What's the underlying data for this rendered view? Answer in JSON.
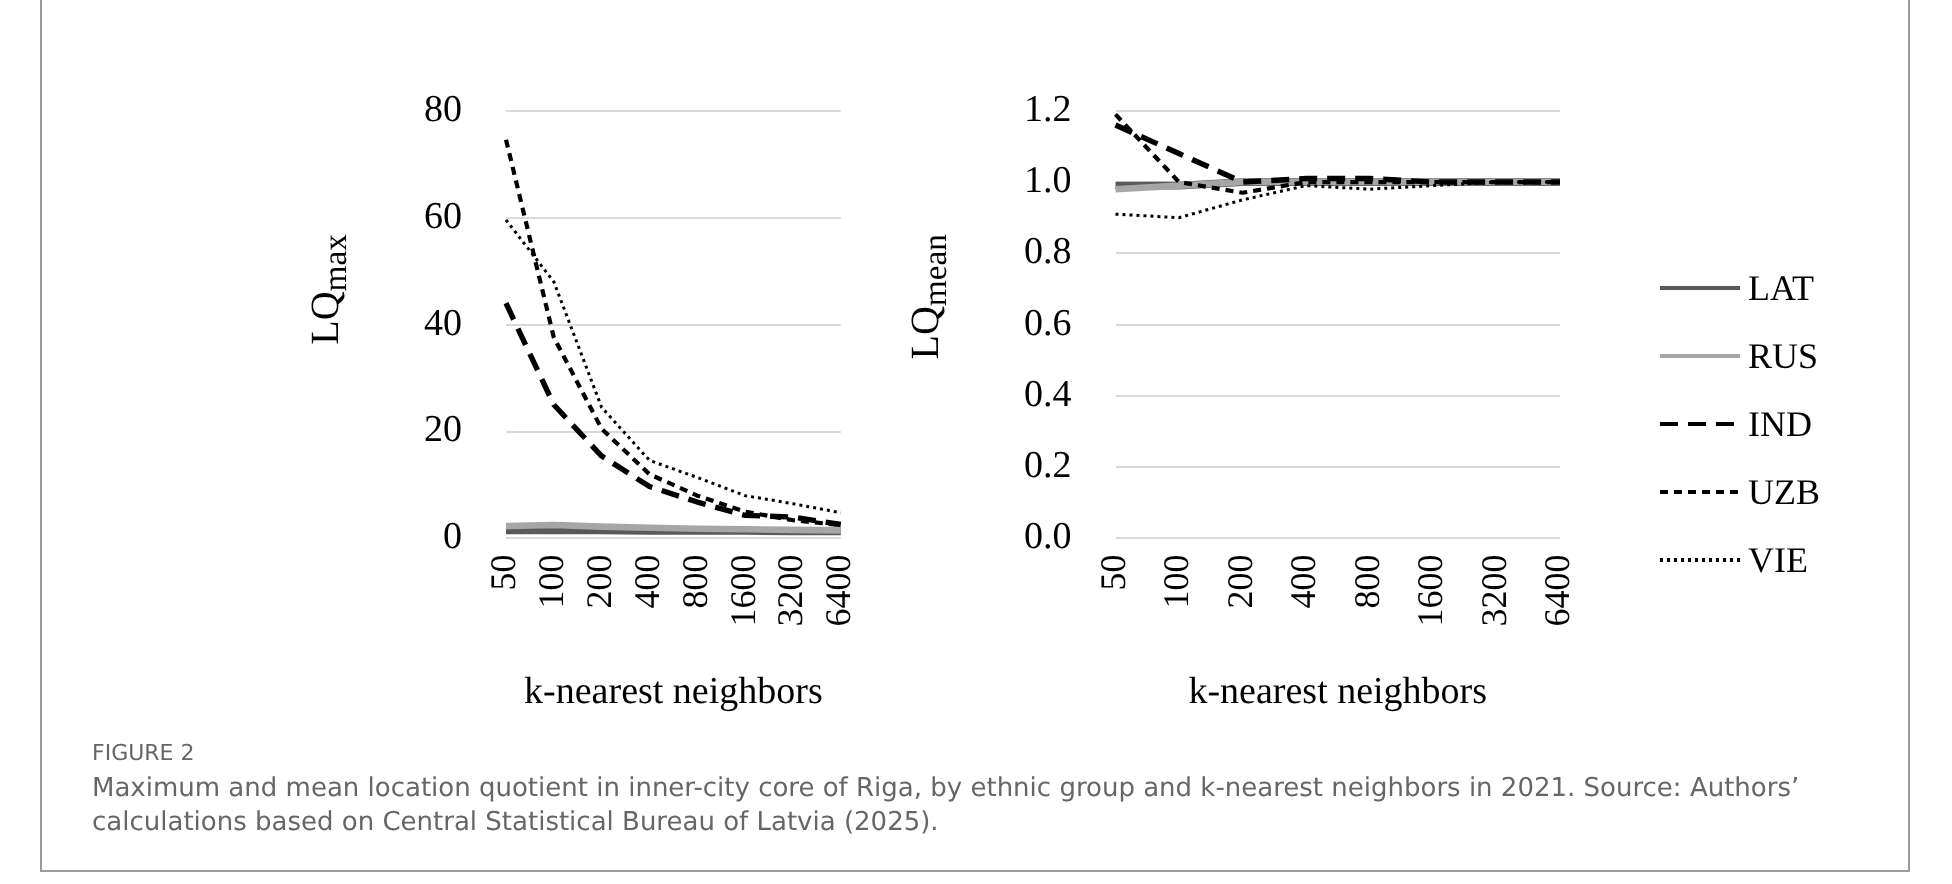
{
  "chart_data": [
    {
      "type": "line",
      "xlabel": "k-nearest neighbors",
      "ylabel": "LQ$_{max}$",
      "categories": [
        "50",
        "100",
        "200",
        "400",
        "800",
        "1600",
        "3200",
        "6400"
      ],
      "ylim": [
        0,
        80
      ],
      "yticks": [
        0,
        20,
        40,
        60,
        80
      ],
      "grid": "y",
      "legend": false,
      "marker": "none",
      "series": [
        {
          "color": "#595959",
          "line_style": "solid",
          "values": [
            1.5,
            1.5,
            1.5,
            1.4,
            1.4,
            1.4,
            1.3,
            1.3
          ]
        },
        {
          "color": "#a6a6a6",
          "line_style": "solid",
          "values": [
            2.3,
            2.5,
            2.2,
            2,
            1.8,
            1.7,
            1.6,
            1.5
          ]
        },
        {
          "color": "#000000",
          "line_style": "dashed",
          "values": [
            44,
            25,
            15.4,
            9.7,
            6.8,
            4.3,
            4,
            2.6
          ]
        },
        {
          "color": "#000000",
          "line_style": "dashed",
          "values": [
            74.6,
            37.6,
            20.5,
            12,
            8,
            5,
            3.4,
            2.5
          ]
        },
        {
          "color": "#000000",
          "line_style": "dotted",
          "values": [
            59.6,
            48,
            24.5,
            14.6,
            11.4,
            8,
            6.5,
            4.8
          ]
        }
      ],
      "annotations": [
        "FIGURE 2",
        "Maximum and mean location quotient in inner-city core of Riga, by ethnic group and k-nearest neighbors in 2021. Source: Authors’ calculations based on Central Statistical Bureau of Latvia (2025)."
      ]
    },
    {
      "type": "line",
      "xlabel": "k-nearest neighbors",
      "ylabel": "LQ$_{mean}$",
      "categories": [
        "50",
        "100",
        "200",
        "400",
        "800",
        "1600",
        "3200",
        "6400"
      ],
      "ylim": [
        0,
        1.2
      ],
      "yticks": [
        {
          "value": 0,
          "label": "0.0"
        },
        0.2,
        0.4,
        0.6,
        0.8,
        {
          "value": 1,
          "label": "1.0"
        },
        1.2
      ],
      "grid": "y",
      "legend": "right",
      "marker": "none",
      "series": [
        {
          "name": "LAT",
          "color": "#595959",
          "line_style": "solid",
          "values": [
            0.99,
            0.99,
            1,
            1,
            1,
            1,
            1,
            1
          ]
        },
        {
          "name": "RUS",
          "color": "#a6a6a6",
          "line_style": "solid",
          "values": [
            0.98,
            0.99,
            1,
            1,
            1,
            1,
            1,
            1
          ]
        },
        {
          "name": "IND",
          "color": "#000000",
          "line_style": "dashed",
          "values": [
            1.16,
            1.08,
            1,
            1.01,
            1.01,
            1,
            1,
            1
          ]
        },
        {
          "name": "UZB",
          "color": "#000000",
          "line_style": "dashed",
          "values": [
            1.19,
            1,
            0.97,
            1,
            1,
            1,
            1,
            1
          ]
        },
        {
          "name": "VIE",
          "color": "#000000",
          "line_style": "dotted",
          "values": [
            0.91,
            0.9,
            0.95,
            0.99,
            0.98,
            0.99,
            1,
            1
          ]
        }
      ]
    }
  ]
}
